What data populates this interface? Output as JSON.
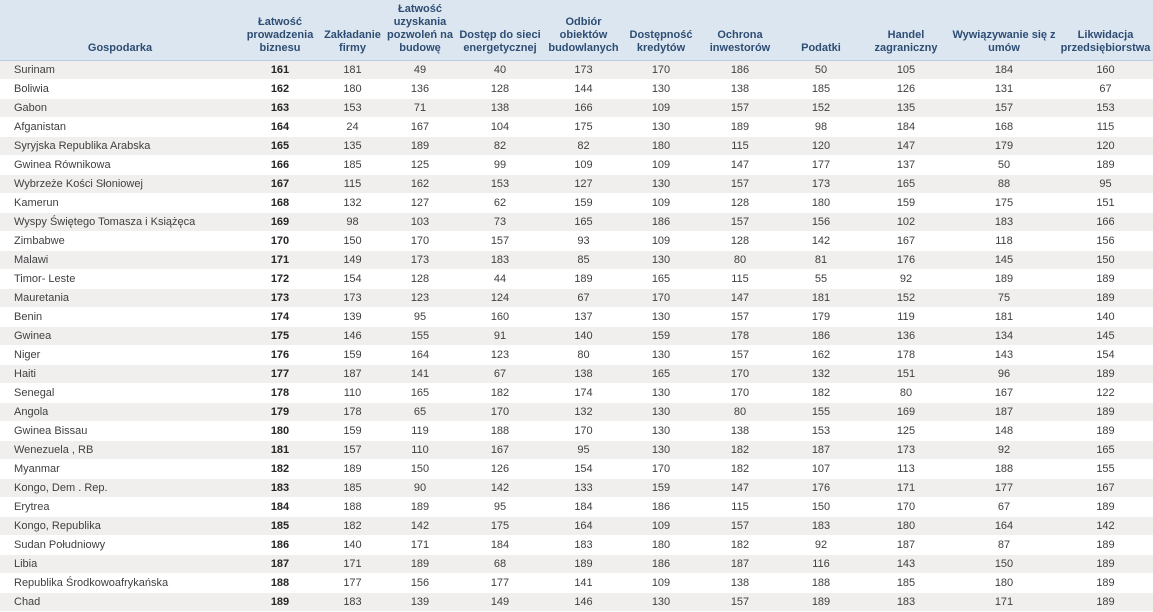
{
  "colors": {
    "header_bg": "#dce6f1",
    "header_text": "#2e4d73",
    "header_border": "#b8cce4",
    "stripe_bg": "#f0efee",
    "body_text": "#404040",
    "rank_text": "#262626"
  },
  "chart_data": {
    "type": "table",
    "columns": [
      "Gospodarka",
      "Łatwość prowadzenia biznesu",
      "Zakładanie firmy",
      "Łatwość uzyskania pozwoleń na budowę",
      "Dostęp do sieci energetycznej",
      "Odbiór obiektów budowlanych",
      "Dostępność kredytów",
      "Ochrona inwestorów",
      "Podatki",
      "Handel zagraniczny",
      "Wywiązywanie się z umów",
      "Likwidacja przedsiębiorstwa"
    ],
    "rows": [
      {
        "name": "Surinam",
        "values": [
          161,
          181,
          49,
          40,
          173,
          170,
          186,
          50,
          105,
          184,
          160
        ]
      },
      {
        "name": "Boliwia",
        "values": [
          162,
          180,
          136,
          128,
          144,
          130,
          138,
          185,
          126,
          131,
          67
        ]
      },
      {
        "name": "Gabon",
        "values": [
          163,
          153,
          71,
          138,
          166,
          109,
          157,
          152,
          135,
          157,
          153
        ]
      },
      {
        "name": "Afganistan",
        "values": [
          164,
          24,
          167,
          104,
          175,
          130,
          189,
          98,
          184,
          168,
          115
        ]
      },
      {
        "name": "Syryjska Republika Arabska",
        "values": [
          165,
          135,
          189,
          82,
          82,
          180,
          115,
          120,
          147,
          179,
          120
        ]
      },
      {
        "name": "Gwinea Równikowa",
        "values": [
          166,
          185,
          125,
          99,
          109,
          109,
          147,
          177,
          137,
          50,
          189
        ]
      },
      {
        "name": "Wybrzeże Kości Słoniowej",
        "values": [
          167,
          115,
          162,
          153,
          127,
          130,
          157,
          173,
          165,
          88,
          95
        ]
      },
      {
        "name": "Kamerun",
        "values": [
          168,
          132,
          127,
          62,
          159,
          109,
          128,
          180,
          159,
          175,
          151
        ]
      },
      {
        "name": "Wyspy Świętego Tomasza i Książęca",
        "values": [
          169,
          98,
          103,
          73,
          165,
          186,
          157,
          156,
          102,
          183,
          166
        ]
      },
      {
        "name": "Zimbabwe",
        "values": [
          170,
          150,
          170,
          157,
          93,
          109,
          128,
          142,
          167,
          118,
          156
        ]
      },
      {
        "name": "Malawi",
        "values": [
          171,
          149,
          173,
          183,
          85,
          130,
          80,
          81,
          176,
          145,
          150
        ]
      },
      {
        "name": "Timor- Leste",
        "values": [
          172,
          154,
          128,
          44,
          189,
          165,
          115,
          55,
          92,
          189,
          189
        ]
      },
      {
        "name": "Mauretania",
        "values": [
          173,
          173,
          123,
          124,
          67,
          170,
          147,
          181,
          152,
          75,
          189
        ]
      },
      {
        "name": "Benin",
        "values": [
          174,
          139,
          95,
          160,
          137,
          130,
          157,
          179,
          119,
          181,
          140
        ]
      },
      {
        "name": "Gwinea",
        "values": [
          175,
          146,
          155,
          91,
          140,
          159,
          178,
          186,
          136,
          134,
          145
        ]
      },
      {
        "name": "Niger",
        "values": [
          176,
          159,
          164,
          123,
          80,
          130,
          157,
          162,
          178,
          143,
          154
        ]
      },
      {
        "name": "Haiti",
        "values": [
          177,
          187,
          141,
          67,
          138,
          165,
          170,
          132,
          151,
          96,
          189
        ]
      },
      {
        "name": "Senegal",
        "values": [
          178,
          110,
          165,
          182,
          174,
          130,
          170,
          182,
          80,
          167,
          122
        ]
      },
      {
        "name": "Angola",
        "values": [
          179,
          178,
          65,
          170,
          132,
          130,
          80,
          155,
          169,
          187,
          189
        ]
      },
      {
        "name": "Gwinea Bissau",
        "values": [
          180,
          159,
          119,
          188,
          170,
          130,
          138,
          153,
          125,
          148,
          189
        ]
      },
      {
        "name": "Wenezuela , RB",
        "values": [
          181,
          157,
          110,
          167,
          95,
          130,
          182,
          187,
          173,
          92,
          165
        ]
      },
      {
        "name": "Myanmar",
        "values": [
          182,
          189,
          150,
          126,
          154,
          170,
          182,
          107,
          113,
          188,
          155
        ]
      },
      {
        "name": "Kongo, Dem . Rep.",
        "values": [
          183,
          185,
          90,
          142,
          133,
          159,
          147,
          176,
          171,
          177,
          167
        ]
      },
      {
        "name": "Erytrea",
        "values": [
          184,
          188,
          189,
          95,
          184,
          186,
          115,
          150,
          170,
          67,
          189
        ]
      },
      {
        "name": "Kongo, Republika",
        "values": [
          185,
          182,
          142,
          175,
          164,
          109,
          157,
          183,
          180,
          164,
          142
        ]
      },
      {
        "name": "Sudan Południowy",
        "values": [
          186,
          140,
          171,
          184,
          183,
          180,
          182,
          92,
          187,
          87,
          189
        ]
      },
      {
        "name": "Libia",
        "values": [
          187,
          171,
          189,
          68,
          189,
          186,
          187,
          116,
          143,
          150,
          189
        ]
      },
      {
        "name": "Republika Środkowoafrykańska",
        "values": [
          188,
          177,
          156,
          177,
          141,
          109,
          138,
          188,
          185,
          180,
          189
        ]
      },
      {
        "name": "Chad",
        "values": [
          189,
          183,
          139,
          149,
          146,
          130,
          157,
          189,
          183,
          171,
          189
        ]
      }
    ]
  }
}
